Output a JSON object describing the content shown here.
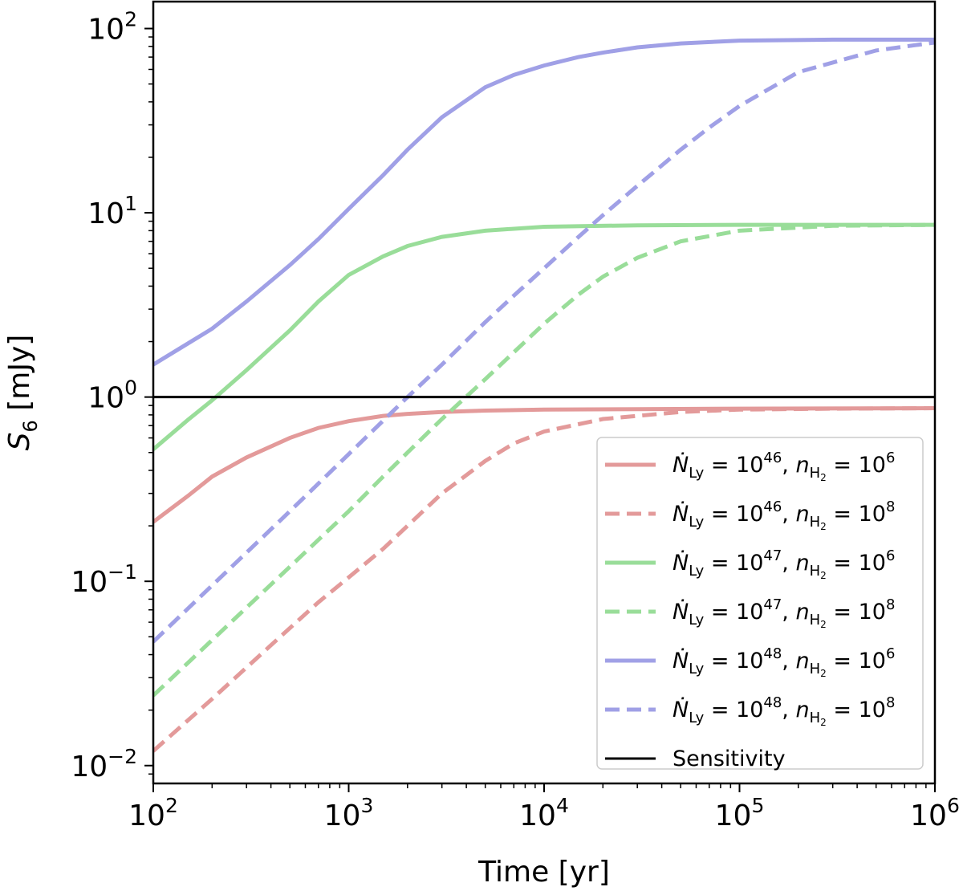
{
  "chart_data": {
    "type": "line",
    "title": "",
    "xlabel": "Time [yr]",
    "ylabel": "S6 [mJy]",
    "ylabel_main": "S",
    "ylabel_sub": "6",
    "ylabel_unit": " [mJy]",
    "xscale": "log",
    "yscale": "log",
    "xlim": [
      100,
      1000000
    ],
    "ylim": [
      0.008,
      140
    ],
    "grid": false,
    "legend_position": "lower-right",
    "x_ticks": [
      {
        "value": 100,
        "base": "10",
        "exp": "2"
      },
      {
        "value": 1000,
        "base": "10",
        "exp": "3"
      },
      {
        "value": 10000,
        "base": "10",
        "exp": "4"
      },
      {
        "value": 100000,
        "base": "10",
        "exp": "5"
      },
      {
        "value": 1000000,
        "base": "10",
        "exp": "6"
      }
    ],
    "y_ticks": [
      {
        "value": 0.01,
        "base": "10",
        "exp": "−2"
      },
      {
        "value": 0.1,
        "base": "10",
        "exp": "−1"
      },
      {
        "value": 1,
        "base": "10",
        "exp": "0"
      },
      {
        "value": 10,
        "base": "10",
        "exp": "1"
      },
      {
        "value": 100,
        "base": "10",
        "exp": "2"
      }
    ],
    "sensitivity": {
      "name": "Sensitivity",
      "value": 1.0,
      "color": "#000000"
    },
    "series": [
      {
        "name": "N_Ly = 10^46, n_H2 = 10^6",
        "nly_exp": "46",
        "nh2_exp": "6",
        "color": "#e39a9a",
        "dashed": false,
        "x": [
          100,
          150,
          200,
          300,
          500,
          700,
          1000,
          1500,
          2000,
          3000,
          5000,
          10000,
          30000,
          100000,
          1000000
        ],
        "y": [
          0.21,
          0.29,
          0.37,
          0.47,
          0.6,
          0.68,
          0.74,
          0.79,
          0.81,
          0.83,
          0.845,
          0.855,
          0.86,
          0.865,
          0.87
        ]
      },
      {
        "name": "N_Ly = 10^46, n_H2 = 10^8",
        "nly_exp": "46",
        "nh2_exp": "8",
        "color": "#e39a9a",
        "dashed": true,
        "x": [
          100,
          200,
          400,
          700,
          1000,
          1500,
          2000,
          3000,
          5000,
          7000,
          10000,
          20000,
          50000,
          100000,
          300000,
          1000000
        ],
        "y": [
          0.012,
          0.023,
          0.045,
          0.077,
          0.105,
          0.15,
          0.2,
          0.3,
          0.45,
          0.56,
          0.65,
          0.76,
          0.83,
          0.855,
          0.865,
          0.87
        ]
      },
      {
        "name": "N_Ly = 10^47, n_H2 = 10^6",
        "nly_exp": "47",
        "nh2_exp": "6",
        "color": "#99dd99",
        "dashed": false,
        "x": [
          100,
          150,
          200,
          300,
          500,
          700,
          1000,
          1500,
          2000,
          3000,
          5000,
          10000,
          30000,
          100000,
          1000000
        ],
        "y": [
          0.52,
          0.75,
          0.96,
          1.4,
          2.3,
          3.3,
          4.6,
          5.8,
          6.6,
          7.4,
          8.0,
          8.4,
          8.55,
          8.6,
          8.6
        ]
      },
      {
        "name": "N_Ly = 10^47, n_H2 = 10^8",
        "nly_exp": "47",
        "nh2_exp": "8",
        "color": "#99dd99",
        "dashed": true,
        "x": [
          100,
          200,
          500,
          1000,
          1500,
          2000,
          3000,
          5000,
          7000,
          10000,
          15000,
          20000,
          30000,
          50000,
          100000,
          300000,
          1000000
        ],
        "y": [
          0.024,
          0.048,
          0.12,
          0.24,
          0.37,
          0.5,
          0.76,
          1.25,
          1.75,
          2.5,
          3.6,
          4.5,
          5.7,
          7.0,
          8.0,
          8.5,
          8.6
        ]
      },
      {
        "name": "N_Ly = 10^48, n_H2 = 10^6",
        "nly_exp": "48",
        "nh2_exp": "6",
        "color": "#a0a0e6",
        "dashed": false,
        "x": [
          100,
          150,
          200,
          300,
          500,
          700,
          1000,
          1500,
          2000,
          3000,
          5000,
          7000,
          10000,
          15000,
          20000,
          30000,
          50000,
          100000,
          300000,
          1000000
        ],
        "y": [
          1.5,
          1.95,
          2.35,
          3.3,
          5.2,
          7.2,
          10.5,
          16,
          22,
          33,
          48,
          56,
          63,
          70,
          74,
          79,
          83,
          86,
          87,
          87
        ]
      },
      {
        "name": "N_Ly = 10^48, n_H2 = 10^8",
        "nly_exp": "48",
        "nh2_exp": "8",
        "color": "#a0a0e6",
        "dashed": true,
        "x": [
          100,
          200,
          500,
          1000,
          2000,
          3000,
          5000,
          7000,
          10000,
          15000,
          20000,
          30000,
          50000,
          70000,
          100000,
          200000,
          500000,
          1000000
        ],
        "y": [
          0.047,
          0.095,
          0.24,
          0.49,
          1.0,
          1.5,
          2.55,
          3.55,
          5.0,
          7.4,
          9.7,
          14,
          22,
          29,
          38,
          58,
          76,
          84
        ]
      }
    ]
  }
}
